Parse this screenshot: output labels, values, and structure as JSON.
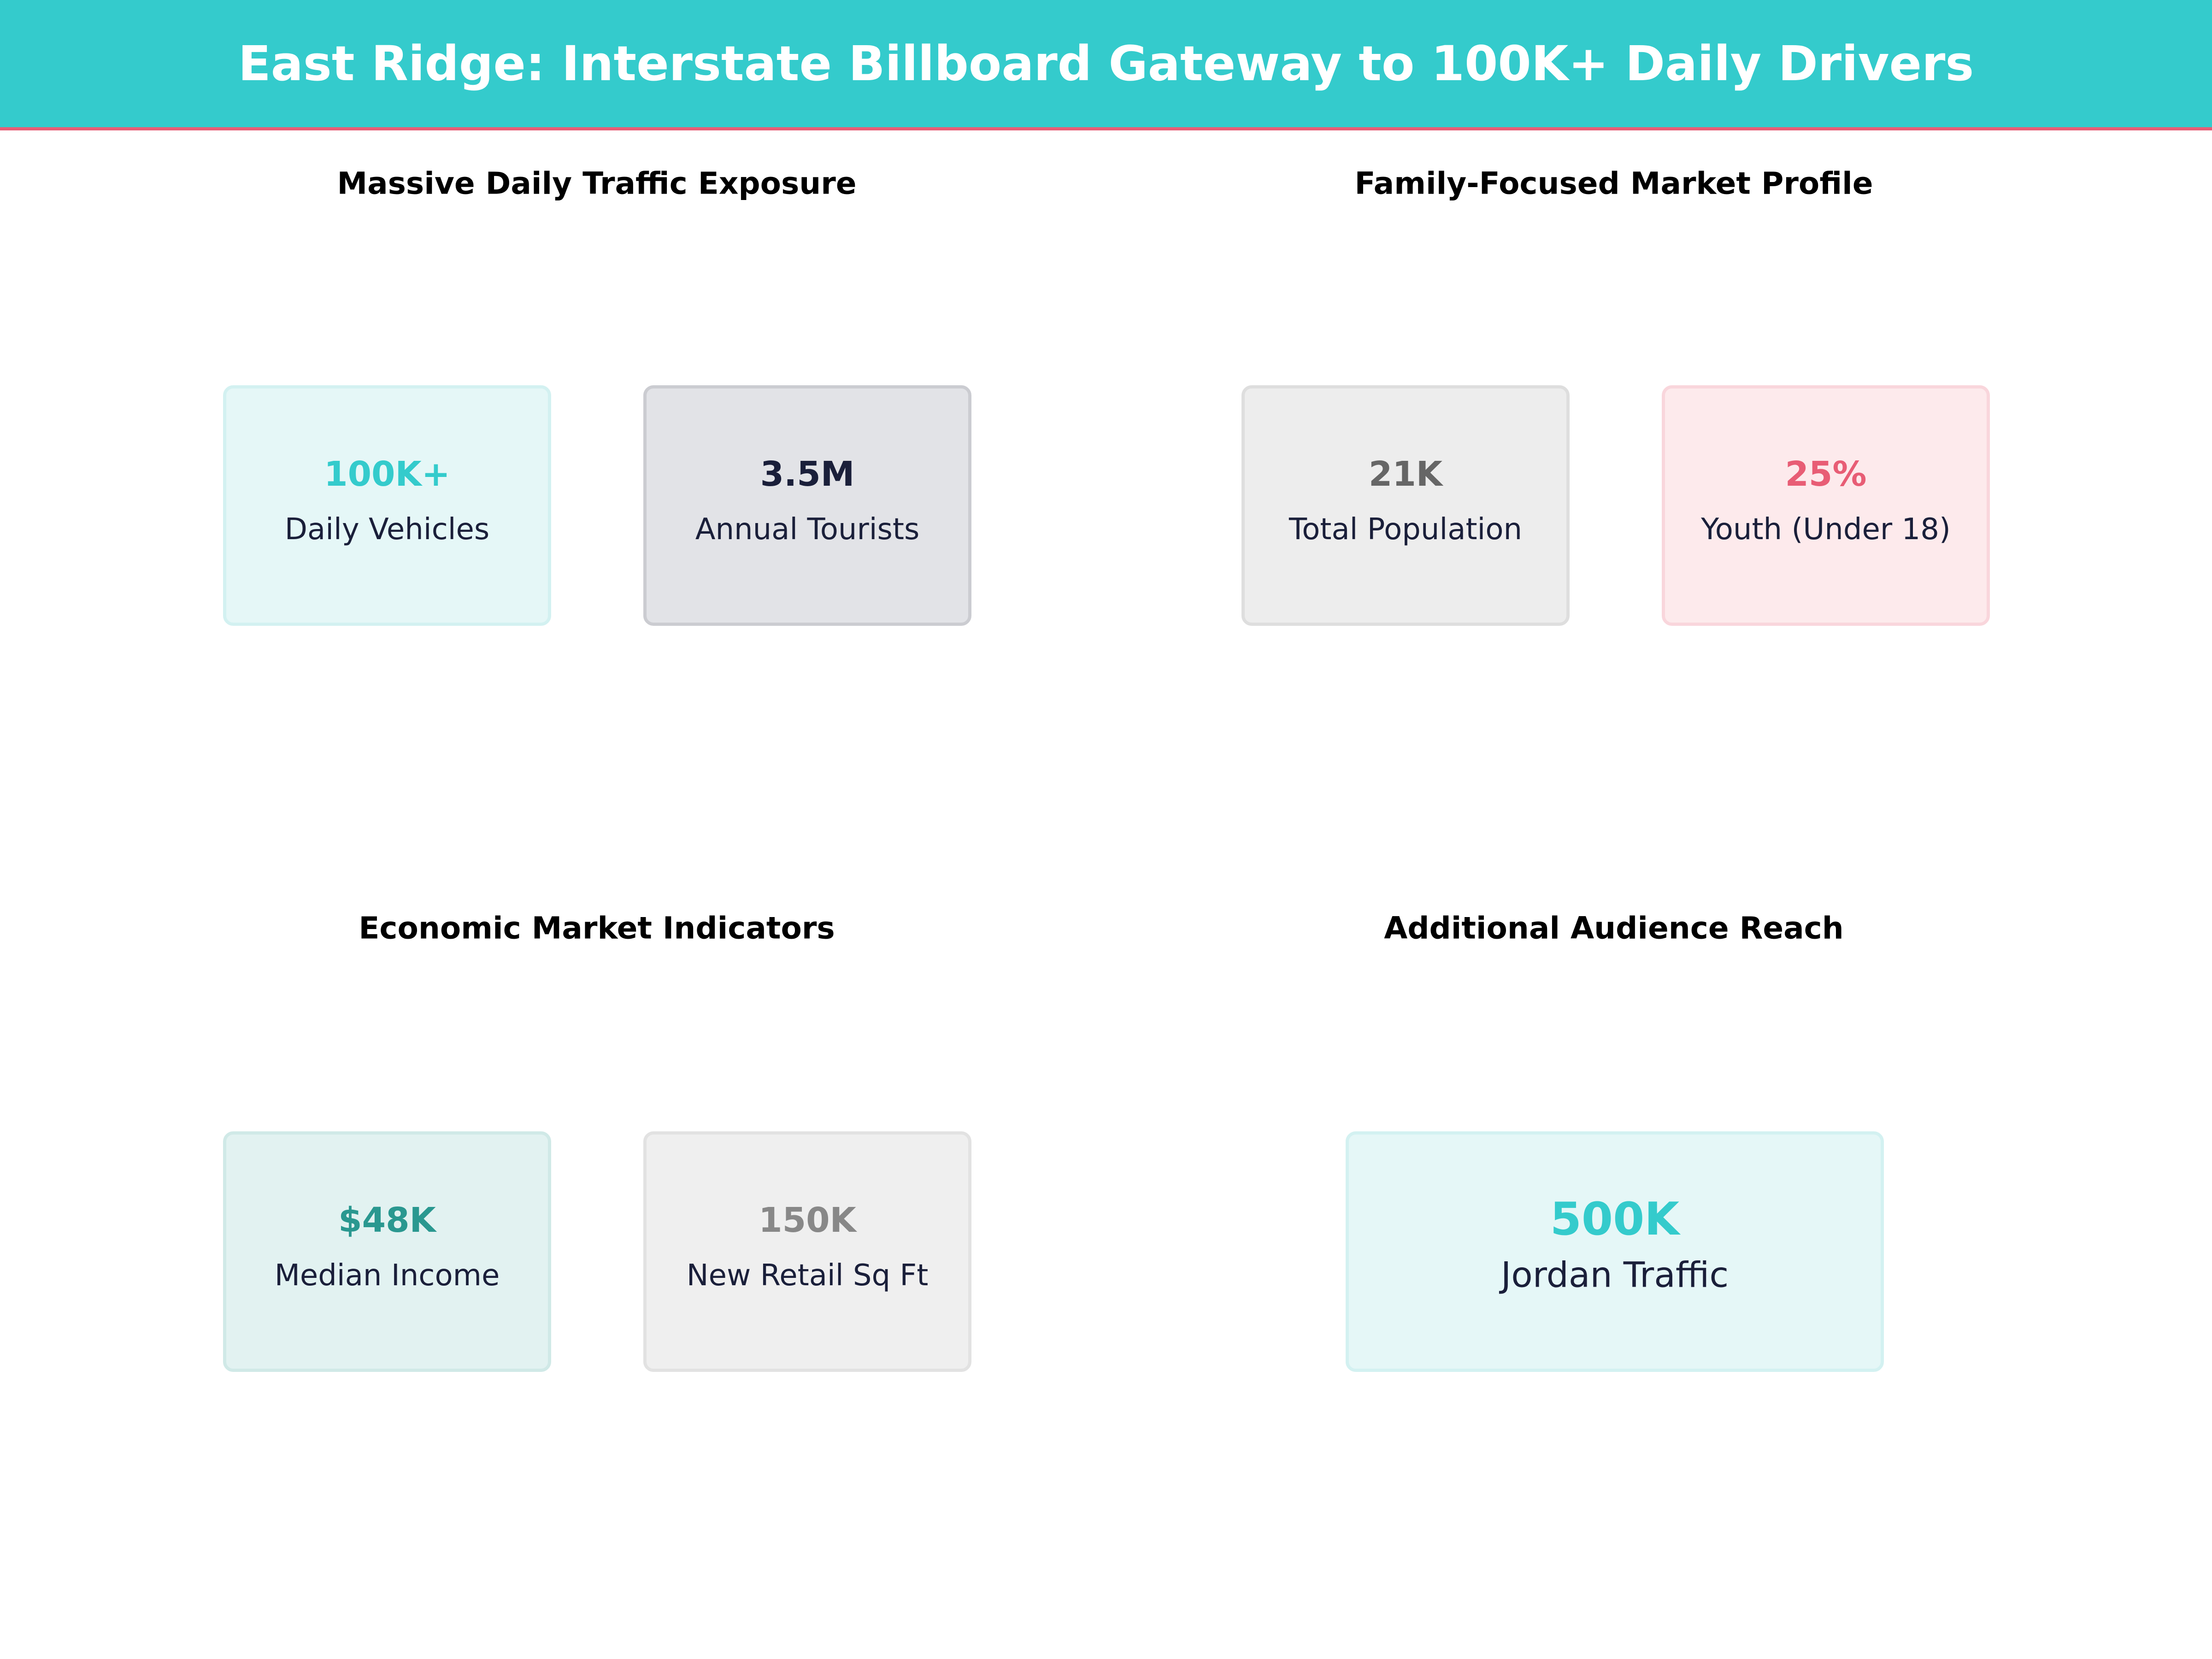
{
  "header": {
    "title": "East Ridge: Interstate Billboard Gateway to 100K+ Daily Drivers"
  },
  "colors": {
    "header_bg": "#34cbcc",
    "accent_line": "#e85d75",
    "label_text": "#1a1f3a"
  },
  "sections": [
    {
      "title": "Massive Daily Traffic Exposure",
      "cards": [
        {
          "value": "100K+",
          "label": "Daily Vehicles",
          "value_color": "#34cbcc",
          "bg": "#e5f7f7"
        },
        {
          "value": "3.5M",
          "label": "Annual Tourists",
          "value_color": "#1a1f3a",
          "bg": "#e2e3e7"
        }
      ]
    },
    {
      "title": "Family-Focused Market Profile",
      "cards": [
        {
          "value": "21K",
          "label": "Total Population",
          "value_color": "#666666",
          "bg": "#ededed"
        },
        {
          "value": "25%",
          "label": "Youth (Under 18)",
          "value_color": "#e85d75",
          "bg": "#fdeaec"
        }
      ]
    },
    {
      "title": "Economic Market Indicators",
      "cards": [
        {
          "value": "$48K",
          "label": "Median Income",
          "value_color": "#2a9890",
          "bg": "#e2f2f1"
        },
        {
          "value": "150K",
          "label": "New Retail Sq Ft",
          "value_color": "#888888",
          "bg": "#efefef"
        }
      ]
    },
    {
      "title": "Additional Audience Reach",
      "cards": [
        {
          "value": "500K",
          "label": "Jordan Traffic",
          "value_color": "#34cbcc",
          "bg": "#e5f7f7"
        }
      ]
    }
  ]
}
